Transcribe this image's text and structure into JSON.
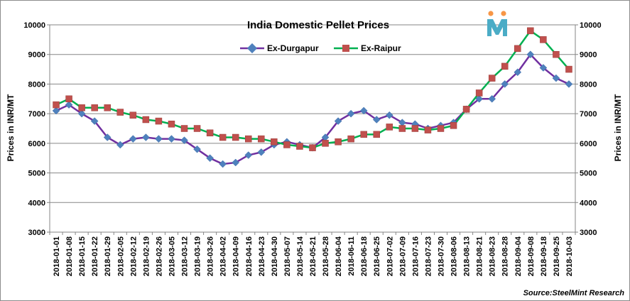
{
  "chart_data": {
    "type": "line",
    "title": "India Domestic Pellet Prices",
    "ylabel": "Prices in INR/MT",
    "ylabel_right": "Prices in INR/MT",
    "ylim": [
      3000,
      10000
    ],
    "yticks": [
      3000,
      4000,
      5000,
      6000,
      7000,
      8000,
      9000,
      10000
    ],
    "source": "Source:SteelMint Research",
    "grid": true,
    "legend": "top-center",
    "x": [
      "2018-01-01",
      "2018-01-08",
      "2018-01-15",
      "2018-01-22",
      "2018-01-29",
      "2018-02-05",
      "2018-02-12",
      "2018-02-19",
      "2018-02-26",
      "2018-03-05",
      "2018-03-12",
      "2018-03-19",
      "2018-03-26",
      "2018-04-02",
      "2018-04-09",
      "2018-04-16",
      "2018-04-23",
      "2018-04-30",
      "2018-05-07",
      "2018-05-14",
      "2018-05-21",
      "2018-05-28",
      "2018-06-04",
      "2018-06-11",
      "2018-06-18",
      "2018-06-25",
      "2018-07-02",
      "2018-07-09",
      "2018-07-16",
      "2018-07-23",
      "2018-07-30",
      "2018-08-06",
      "2018-08-13",
      "2018-08-21",
      "2018-08-23",
      "2018-08-28",
      "2018-09-04",
      "2018-09-08",
      "2018-09-18",
      "2018-09-25",
      "2018-10-03"
    ],
    "series": [
      {
        "name": "Ex-Durgapur",
        "color": "#7030a0",
        "marker_color": "#4f81bd",
        "marker": "diamond",
        "values": [
          7100,
          7300,
          7000,
          6750,
          6200,
          5950,
          6150,
          6200,
          6150,
          6150,
          6100,
          5800,
          5500,
          5300,
          5350,
          5600,
          5700,
          5950,
          6050,
          5950,
          5850,
          6200,
          6750,
          7000,
          7100,
          6800,
          6950,
          6700,
          6650,
          6500,
          6600,
          6700,
          7150,
          7500,
          7500,
          8000,
          8400,
          9000,
          8550,
          8200,
          8000
        ]
      },
      {
        "name": "Ex-Raipur",
        "color": "#00b050",
        "marker_color": "#c0504d",
        "marker": "square",
        "values": [
          7300,
          7500,
          7200,
          7200,
          7200,
          7050,
          6950,
          6800,
          6750,
          6650,
          6500,
          6500,
          6350,
          6200,
          6200,
          6150,
          6150,
          6050,
          5950,
          5900,
          5850,
          6000,
          6050,
          6150,
          6300,
          6300,
          6550,
          6500,
          6500,
          6450,
          6500,
          6600,
          7150,
          7700,
          8200,
          8600,
          9200,
          9800,
          9500,
          9000,
          8500
        ]
      }
    ]
  },
  "logo": {
    "icon": "steelmint-logo-icon",
    "color": "#4bacc6",
    "accent": "#f79646"
  }
}
